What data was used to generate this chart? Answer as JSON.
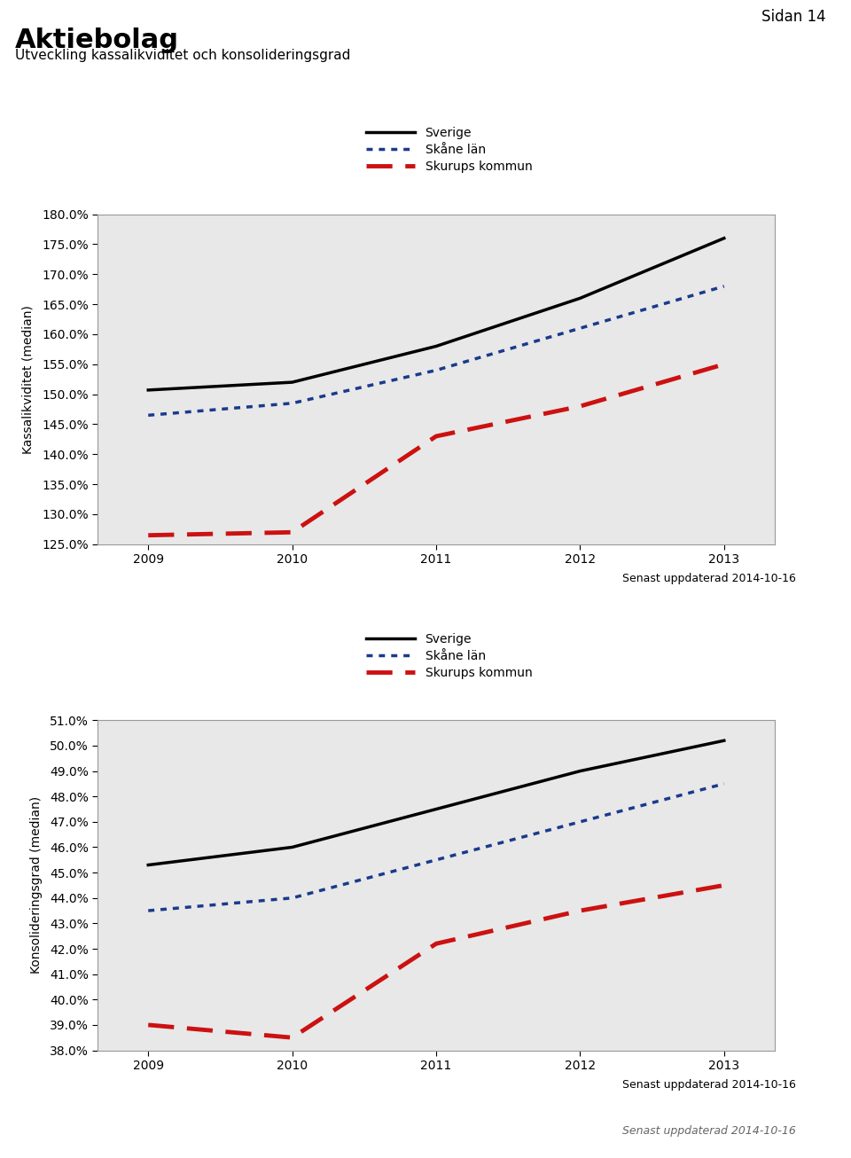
{
  "title": "Aktiebolag",
  "subtitle": "Utveckling kassalikviditet och konsolideringsgrad",
  "page_label": "Sidan 14",
  "date_label": "Senast uppdaterad 2014-10-16",
  "years": [
    2009,
    2010,
    2011,
    2012,
    2013
  ],
  "chart1": {
    "ylabel": "Kassalikviditet (median)",
    "ylim": [
      125.0,
      180.0
    ],
    "yticks": [
      125.0,
      130.0,
      135.0,
      140.0,
      145.0,
      150.0,
      155.0,
      160.0,
      165.0,
      170.0,
      175.0,
      180.0
    ],
    "sverige": [
      150.7,
      152.0,
      158.0,
      166.0,
      176.0
    ],
    "skane": [
      146.5,
      148.5,
      154.0,
      161.0,
      168.0
    ],
    "skurup": [
      126.5,
      127.0,
      143.0,
      148.0,
      155.0
    ]
  },
  "chart2": {
    "ylabel": "Konsolideringsgrad (median)",
    "ylim": [
      38.0,
      51.0
    ],
    "yticks": [
      38.0,
      39.0,
      40.0,
      41.0,
      42.0,
      43.0,
      44.0,
      45.0,
      46.0,
      47.0,
      48.0,
      49.0,
      50.0,
      51.0
    ],
    "sverige": [
      45.3,
      46.0,
      47.5,
      49.0,
      50.2
    ],
    "skane": [
      43.5,
      44.0,
      45.5,
      47.0,
      48.5
    ],
    "skurup": [
      39.0,
      38.5,
      42.2,
      43.5,
      44.5
    ]
  },
  "legend_entries": [
    "Sverige",
    "Skåne län",
    "Skurups kommun"
  ],
  "colors": {
    "sverige": "#000000",
    "skane": "#1a3a8c",
    "skurup": "#cc1111"
  },
  "plot_bg": "#e8e8e8"
}
